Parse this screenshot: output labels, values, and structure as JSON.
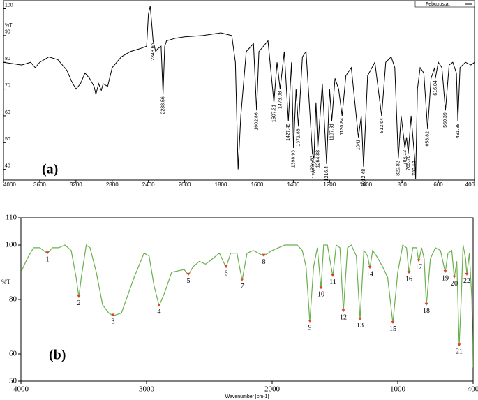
{
  "chart_data": [
    {
      "type": "line",
      "panel_label": "(a)",
      "ylabel": "%T",
      "x_axis_scale": "piecewise",
      "xlim": [
        4000,
        400
      ],
      "ylim": [
        36,
        103
      ],
      "xticks": [
        4000,
        3600,
        3200,
        2800,
        2400,
        2000,
        1800,
        1600,
        1400,
        1200,
        1000,
        800,
        600,
        400
      ],
      "yticks": [
        40,
        50,
        60,
        70,
        80,
        90,
        100
      ],
      "legend": "upper right",
      "x": [
        4000,
        3900,
        3800,
        3700,
        3650,
        3600,
        3500,
        3400,
        3300,
        3250,
        3200,
        3150,
        3100,
        3050,
        3000,
        2980,
        2950,
        2920,
        2900,
        2850,
        2800,
        2700,
        2600,
        2500,
        2420,
        2400,
        2380,
        2360,
        2348.66,
        2320,
        2300,
        2260,
        2238.56,
        2220,
        2200,
        2100,
        2000,
        1900,
        1800,
        1740,
        1720,
        1705,
        1690,
        1660,
        1620,
        1602.86,
        1590,
        1540,
        1507.31,
        1490,
        1473.08,
        1450,
        1427.45,
        1410,
        1398.93,
        1385,
        1371.88,
        1350,
        1330,
        1294.83,
        1286.27,
        1275,
        1264.88,
        1240,
        1216.4,
        1200,
        1187.91,
        1170,
        1150,
        1130.84,
        1110,
        1080,
        1041.0,
        1025,
        1012.48,
        990,
        950,
        912.64,
        890,
        860,
        840,
        820.82,
        805,
        784.13,
        775,
        765.78,
        750,
        735,
        730.12,
        725,
        715,
        700,
        680,
        658.82,
        640,
        620,
        616.04,
        600,
        580,
        560.39,
        540,
        520,
        500,
        491.98,
        480,
        450,
        420,
        400
      ],
      "series": [
        {
          "name": "Febuxostat",
          "color": "#000000",
          "values": [
            80,
            79.5,
            79,
            80,
            78,
            80,
            82,
            81,
            77,
            73,
            70,
            72,
            76,
            74,
            71,
            68,
            72,
            69.5,
            72,
            71,
            78,
            82,
            84,
            85,
            86,
            98,
            101,
            93,
            88,
            84,
            85,
            86,
            68,
            86,
            88,
            89,
            89.5,
            90,
            91,
            90,
            80,
            40,
            60,
            84,
            87,
            62,
            84,
            88,
            65,
            80,
            70,
            84,
            58,
            80,
            48,
            70,
            56,
            82,
            84,
            46,
            44,
            65,
            48,
            72,
            42,
            70,
            58,
            74,
            70,
            60,
            75,
            78,
            52,
            60,
            41,
            75,
            80,
            60,
            80,
            82,
            78,
            44,
            60,
            48,
            52,
            46,
            60,
            48,
            44,
            36.5,
            70,
            78,
            76,
            55,
            74,
            78,
            74,
            80,
            78,
            62,
            79,
            80,
            76,
            58,
            78,
            80,
            79,
            80
          ]
        }
      ],
      "peak_labels": [
        2348.66,
        2238.56,
        1602.86,
        1507.31,
        1473.08,
        1427.45,
        1398.93,
        1371.88,
        1294.83,
        1286.27,
        1264.88,
        1216.4,
        1187.91,
        1130.84,
        1041.0,
        1012.48,
        912.64,
        820.82,
        784.13,
        765.78,
        730.12,
        658.82,
        616.04,
        560.39,
        491.98
      ]
    },
    {
      "type": "line",
      "panel_label": "(b)",
      "ylabel": "%T",
      "xlabel": "Wavenumber [cm-1]",
      "xlim": [
        4000,
        400
      ],
      "ylim": [
        50,
        110
      ],
      "xticks": [
        4000,
        3000,
        2000,
        1000,
        400
      ],
      "yticks": [
        50,
        60,
        80,
        100,
        110
      ],
      "x": [
        4000,
        3950,
        3900,
        3850,
        3789,
        3750,
        3700,
        3650,
        3600,
        3560,
        3539,
        3520,
        3480,
        3450,
        3400,
        3350,
        3300,
        3267,
        3200,
        3100,
        3020,
        2980,
        2940,
        2900,
        2860,
        2800,
        2700,
        2667,
        2630,
        2580,
        2530,
        2500,
        2420,
        2367,
        2330,
        2280,
        2239,
        2200,
        2150,
        2067,
        2000,
        1900,
        1800,
        1760,
        1730,
        1700,
        1670,
        1640,
        1611,
        1590,
        1560,
        1517,
        1490,
        1460,
        1433,
        1400,
        1370,
        1330,
        1300,
        1270,
        1240,
        1222,
        1200,
        1170,
        1120,
        1080,
        1039,
        1000,
        960,
        930,
        911,
        880,
        850,
        833,
        810,
        790,
        772,
        740,
        700,
        660,
        622,
        600,
        570,
        550,
        530,
        511,
        495,
        480,
        460,
        450,
        430,
        410,
        400
      ],
      "series": [
        {
          "color": "#6ab04c",
          "values": [
            90,
            95,
            99,
            99,
            96.9,
            99,
            99,
            100,
            98,
            88,
            80.8,
            88,
            100,
            99,
            90,
            78,
            75,
            74,
            75,
            88,
            97,
            96,
            85,
            77.7,
            82,
            90,
            91,
            89,
            92,
            94,
            93,
            94,
            97,
            91.8,
            97,
            97,
            87,
            97,
            98,
            96,
            98,
            100,
            100,
            98,
            92,
            71.8,
            92,
            99,
            84,
            100,
            100,
            88.5,
            100,
            99,
            75.6,
            99,
            100,
            96,
            72.6,
            98,
            96,
            91.5,
            98,
            96,
            92,
            88,
            71.3,
            90,
            100,
            99,
            89.7,
            99,
            99,
            94,
            99,
            95,
            78,
            95,
            99,
            98,
            90,
            97,
            98,
            88,
            94,
            63,
            80,
            100,
            95,
            89,
            97,
            80,
            55
          ]
        }
      ],
      "peaks": {
        "color": "#e03c31",
        "labels": [
          "1",
          "2",
          "3",
          "4",
          "5",
          "6",
          "7",
          "8",
          "9",
          "10",
          "11",
          "12",
          "13",
          "14",
          "15",
          "16",
          "17",
          "18",
          "19",
          "20",
          "21",
          "22"
        ],
        "x": [
          3789,
          3539,
          3267,
          2900,
          2667,
          2367,
          2239,
          2067,
          1700,
          1611,
          1517,
          1433,
          1300,
          1222,
          1039,
          911,
          833,
          772,
          622,
          550,
          511,
          450
        ],
        "y": [
          96.9,
          80.8,
          74,
          77.7,
          89,
          91.8,
          87,
          96,
          71.8,
          84,
          88.5,
          75.6,
          72.6,
          91.5,
          71.3,
          89.7,
          94,
          78,
          90,
          88,
          63,
          89
        ]
      }
    }
  ]
}
